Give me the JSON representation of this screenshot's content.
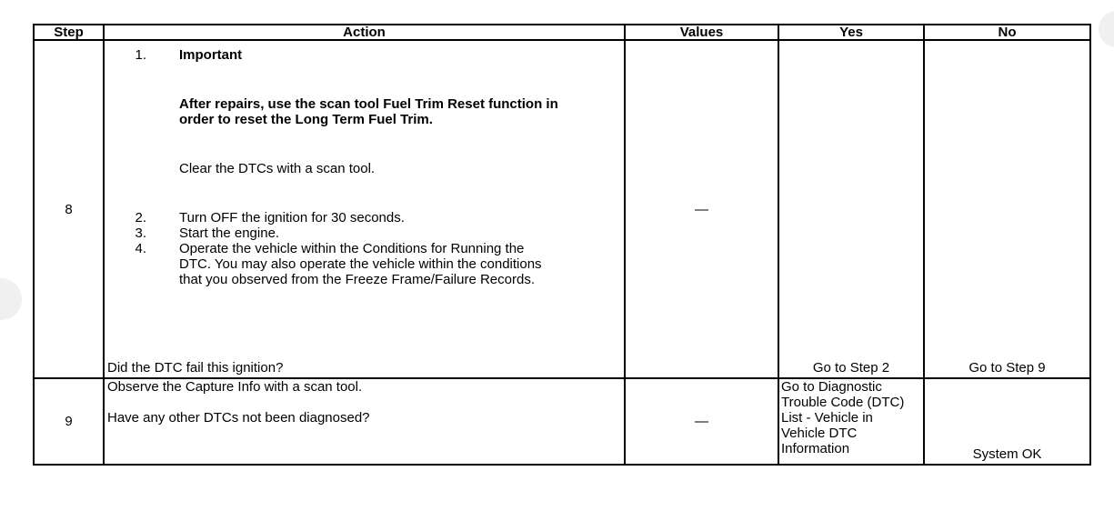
{
  "headers": [
    "Step",
    "Action",
    "Values",
    "Yes",
    "No"
  ],
  "rows": [
    {
      "step": "8",
      "item1_num": "1.",
      "item1_title": "Important",
      "item1_note": "After repairs, use the scan tool Fuel Trim Reset function in order to reset the Long Term Fuel Trim.",
      "item1_text": "Clear the DTCs with a scan tool.",
      "items": [
        {
          "num": "2.",
          "text": "Turn OFF the ignition for 30 seconds."
        },
        {
          "num": "3.",
          "text": "Start the engine."
        },
        {
          "num": "4.",
          "text": "Operate the vehicle within the Conditions for Running the DTC. You may also operate the vehicle within the conditions that you observed from the Freeze Frame/Failure Records."
        }
      ],
      "question": "Did the DTC fail this ignition?",
      "values": "—",
      "yes": "Go to Step 2",
      "no": "Go to Step 9"
    },
    {
      "step": "9",
      "text": "Observe the Capture Info with a scan tool.",
      "question": "Have any other DTCs not been diagnosed?",
      "values": "—",
      "yes": "Go to Diagnostic Trouble Code (DTC) List - Vehicle in Vehicle DTC Information",
      "no": "System OK"
    }
  ]
}
